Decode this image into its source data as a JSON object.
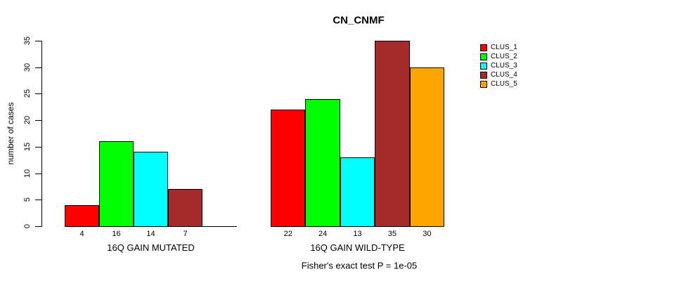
{
  "title": "CN_CNMF",
  "footer": "Fisher's exact test P = 1e-05",
  "y_axis": {
    "label": "number of cases",
    "ticks": [
      "0",
      "5",
      "10",
      "15",
      "20",
      "25",
      "30",
      "35"
    ]
  },
  "legend": {
    "items": [
      {
        "label": "CLUS_1",
        "color": "#FF0000"
      },
      {
        "label": "CLUS_2",
        "color": "#00FF00"
      },
      {
        "label": "CLUS_3",
        "color": "#00FFFF"
      },
      {
        "label": "CLUS_4",
        "color": "#A52A2A"
      },
      {
        "label": "CLUS_5",
        "color": "#FFA500"
      }
    ]
  },
  "chart_data": {
    "type": "bar",
    "title": "CN_CNMF",
    "ylabel": "number of cases",
    "ylim": [
      0,
      35
    ],
    "yticks": [
      0,
      5,
      10,
      15,
      20,
      25,
      30,
      35
    ],
    "grid": false,
    "legend_position": "right",
    "series": [
      "CLUS_1",
      "CLUS_2",
      "CLUS_3",
      "CLUS_4",
      "CLUS_5"
    ],
    "series_colors": [
      "#FF0000",
      "#00FF00",
      "#00FFFF",
      "#A52A2A",
      "#FFA500"
    ],
    "groups": [
      {
        "label": "16Q GAIN MUTATED",
        "values": [
          4,
          16,
          14,
          7,
          0
        ],
        "value_labels": [
          "4",
          "16",
          "14",
          "7",
          ""
        ]
      },
      {
        "label": "16Q GAIN WILD-TYPE",
        "values": [
          22,
          24,
          13,
          35,
          30
        ],
        "value_labels": [
          "22",
          "24",
          "13",
          "35",
          "30"
        ]
      }
    ],
    "annotation": "Fisher's exact test P = 1e-05"
  }
}
